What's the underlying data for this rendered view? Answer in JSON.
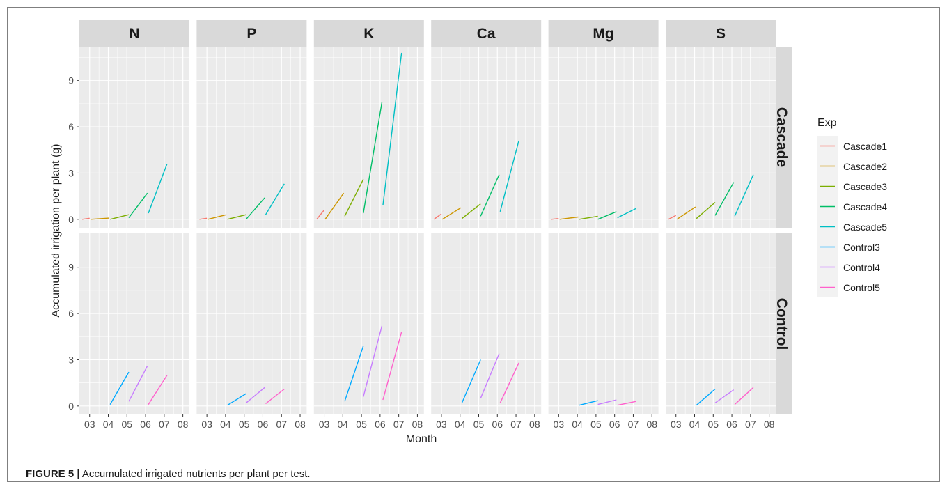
{
  "caption": {
    "label": "FIGURE 5 |",
    "text": "Accumulated irrigated nutrients per plant per test."
  },
  "chart_data": {
    "type": "line",
    "title": "",
    "xlabel": "Month",
    "ylabel": "Accumulated irrigation per plant (g)",
    "columns": [
      "N",
      "P",
      "K",
      "Ca",
      "Mg",
      "S"
    ],
    "rows": [
      "Cascade",
      "Control"
    ],
    "x_ticks": [
      "03",
      "04",
      "05",
      "06",
      "07",
      "08"
    ],
    "x_range": [
      2.45,
      8.35
    ],
    "y_ticks": [
      0,
      3,
      6,
      9
    ],
    "y_range": [
      -0.55,
      11.2
    ],
    "grid": true,
    "legend": {
      "title": "Exp",
      "position": "right",
      "entries": [
        {
          "name": "Cascade1",
          "color": "#F8766D"
        },
        {
          "name": "Cascade2",
          "color": "#CD9600"
        },
        {
          "name": "Cascade3",
          "color": "#7CAE00"
        },
        {
          "name": "Cascade4",
          "color": "#00BE67"
        },
        {
          "name": "Cascade5",
          "color": "#00BFC4"
        },
        {
          "name": "Control3",
          "color": "#00A9FF"
        },
        {
          "name": "Control4",
          "color": "#C77CFF"
        },
        {
          "name": "Control5",
          "color": "#FF61CC"
        }
      ]
    },
    "series_by_column": {
      "Cascade1": {
        "color": "#F8766D",
        "row": "Cascade",
        "x": [
          2.6,
          3.0
        ],
        "y": {
          "N": [
            0,
            0.07
          ],
          "P": [
            0,
            0.07
          ],
          "K": [
            0,
            0.6
          ],
          "Ca": [
            0,
            0.35
          ],
          "Mg": [
            0,
            0.05
          ],
          "S": [
            0,
            0.25
          ]
        }
      },
      "Cascade2": {
        "color": "#CD9600",
        "row": "Cascade",
        "x": [
          3.05,
          4.05
        ],
        "y": {
          "N": [
            0,
            0.08
          ],
          "P": [
            0,
            0.3
          ],
          "K": [
            0,
            1.7
          ],
          "Ca": [
            0,
            0.75
          ],
          "Mg": [
            0,
            0.15
          ],
          "S": [
            0,
            0.8
          ]
        }
      },
      "Cascade3": {
        "color": "#7CAE00",
        "row": "Cascade",
        "x": [
          4.1,
          5.1
        ],
        "y": {
          "N": [
            0,
            0.3
          ],
          "P": [
            0,
            0.3
          ],
          "K": [
            0.2,
            2.6
          ],
          "Ca": [
            0.05,
            1.0
          ],
          "Mg": [
            0,
            0.2
          ],
          "S": [
            0.05,
            1.1
          ]
        }
      },
      "Cascade4": {
        "color": "#00BE67",
        "row": "Cascade",
        "x": [
          5.1,
          6.1
        ],
        "y": {
          "N": [
            0.1,
            1.7
          ],
          "P": [
            0,
            1.4
          ],
          "K": [
            0.4,
            7.6
          ],
          "Ca": [
            0.2,
            2.9
          ],
          "Mg": [
            0,
            0.5
          ],
          "S": [
            0.25,
            2.4
          ]
        }
      },
      "Cascade5": {
        "color": "#00BFC4",
        "row": "Cascade",
        "x": [
          6.15,
          7.15
        ],
        "y": {
          "N": [
            0.4,
            3.6
          ],
          "P": [
            0.3,
            2.3
          ],
          "K": [
            0.9,
            10.8
          ],
          "Ca": [
            0.5,
            5.1
          ],
          "Mg": [
            0.1,
            0.7
          ],
          "S": [
            0.2,
            2.9
          ]
        }
      },
      "Control3": {
        "color": "#00A9FF",
        "row": "Control",
        "x": [
          4.1,
          5.1
        ],
        "y": {
          "N": [
            0.1,
            2.2
          ],
          "P": [
            0.05,
            0.8
          ],
          "K": [
            0.3,
            3.9
          ],
          "Ca": [
            0.2,
            3.0
          ],
          "Mg": [
            0.05,
            0.35
          ],
          "S": [
            0.05,
            1.1
          ]
        }
      },
      "Control4": {
        "color": "#C77CFF",
        "row": "Control",
        "x": [
          5.1,
          6.1
        ],
        "y": {
          "N": [
            0.3,
            2.6
          ],
          "P": [
            0.2,
            1.2
          ],
          "K": [
            0.6,
            5.2
          ],
          "Ca": [
            0.5,
            3.4
          ],
          "Mg": [
            0.1,
            0.4
          ],
          "S": [
            0.2,
            1.05
          ]
        }
      },
      "Control5": {
        "color": "#FF61CC",
        "row": "Control",
        "x": [
          6.15,
          7.15
        ],
        "y": {
          "N": [
            0.1,
            2.0
          ],
          "P": [
            0.15,
            1.1
          ],
          "K": [
            0.4,
            4.8
          ],
          "Ca": [
            0.2,
            2.8
          ],
          "Mg": [
            0.05,
            0.3
          ],
          "S": [
            0.1,
            1.2
          ]
        }
      }
    }
  }
}
